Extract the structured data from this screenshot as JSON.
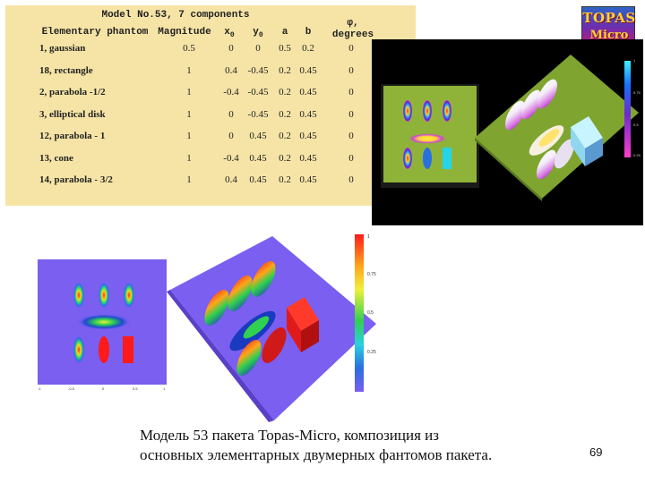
{
  "table": {
    "title": "Model No.53, 7 components",
    "headers": {
      "elementary_phantom": "Elementary phantom",
      "magnitude": "Magnitude",
      "x0": "x",
      "x0_sub": "0",
      "y0": "y",
      "y0_sub": "0",
      "a": "a",
      "b": "b",
      "phi": "φ,",
      "phi_unit": "degrees"
    },
    "rows": [
      {
        "name": "1, gaussian",
        "magnitude": "0.5",
        "x0": "0",
        "y0": "0",
        "a": "0.5",
        "b": "0.2",
        "phi": "0"
      },
      {
        "name": "18, rectangle",
        "magnitude": "1",
        "x0": "0.4",
        "y0": "-0.45",
        "a": "0.2",
        "b": "0.45",
        "phi": "0"
      },
      {
        "name": "2, parabola -1/2",
        "magnitude": "1",
        "x0": "-0.4",
        "y0": "-0.45",
        "a": "0.2",
        "b": "0.45",
        "phi": "0"
      },
      {
        "name": "3, elliptical disk",
        "magnitude": "1",
        "x0": "0",
        "y0": "-0.45",
        "a": "0.2",
        "b": "0.45",
        "phi": "0"
      },
      {
        "name": "12, parabola - 1",
        "magnitude": "1",
        "x0": "0",
        "y0": "0.45",
        "a": "0.2",
        "b": "0.45",
        "phi": "0"
      },
      {
        "name": "13, cone",
        "magnitude": "1",
        "x0": "-0.4",
        "y0": "0.45",
        "a": "0.2",
        "b": "0.45",
        "phi": "0"
      },
      {
        "name": "14, parabola - 3/2",
        "magnitude": "1",
        "x0": "0.4",
        "y0": "0.45",
        "a": "0.2",
        "b": "0.45",
        "phi": "0"
      }
    ]
  },
  "logo": {
    "line1": "TOPAS",
    "line2": "Micro"
  },
  "top_colorbar_ticks": [
    "1",
    "0.75",
    "0.5",
    "0.25"
  ],
  "bottom_colorbar_ticks": [
    "1",
    "0.75",
    "0.5",
    "0.25"
  ],
  "bottom_map_xticks": [
    "-1",
    "-0.5",
    "0",
    "0.5",
    "1"
  ],
  "caption": {
    "line1": "Модель 53 пакета Topas-Micro, композиция из",
    "line2": "основных элементарных двумерных фантомов пакета."
  },
  "page_number": "69",
  "colors": {
    "table_bg": "#f6e4a6",
    "top_floor": "#8fb339",
    "bottom_floor": "#7a5ff0"
  }
}
